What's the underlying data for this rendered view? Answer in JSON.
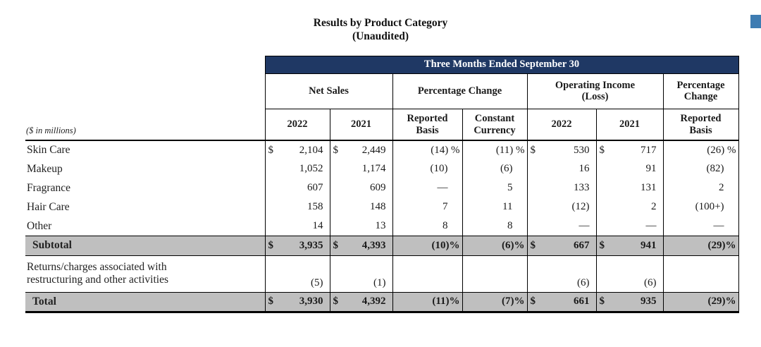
{
  "title": {
    "line1": "Results by Product Category",
    "line2": "(Unaudited)"
  },
  "colors": {
    "navy_header_bg": "#1F3864",
    "header_text": "#FFFFFF",
    "band_bg": "#BFBFBF",
    "border": "#000000",
    "corner_square": "#3E7CB2"
  },
  "table": {
    "span_header": "Three Months Ended September 30",
    "group_headers": [
      "Net Sales",
      "Percentage Change",
      "Operating Income (Loss)",
      "Percentage Change"
    ],
    "units_label": "($ in millions)",
    "col_headers": [
      "2022",
      "2021",
      "Reported Basis",
      "Constant Currency",
      "2022",
      "2021",
      "Reported Basis"
    ],
    "rows": [
      {
        "label": "Skin Care",
        "type": "data",
        "cells": [
          {
            "pre": "$",
            "val": "2,104"
          },
          {
            "pre": "$",
            "val": "2,449"
          },
          {
            "val": "(14) %"
          },
          {
            "val": "(11) %"
          },
          {
            "pre": "$",
            "val": "530"
          },
          {
            "pre": "$",
            "val": "717"
          },
          {
            "val": "(26) %"
          }
        ]
      },
      {
        "label": "Makeup",
        "type": "data",
        "cells": [
          {
            "val": "1,052"
          },
          {
            "val": "1,174"
          },
          {
            "val": "(10)"
          },
          {
            "val": "(6)"
          },
          {
            "val": "16"
          },
          {
            "val": "91"
          },
          {
            "val": "(82)"
          }
        ]
      },
      {
        "label": "Fragrance",
        "type": "data",
        "cells": [
          {
            "val": "607"
          },
          {
            "val": "609"
          },
          {
            "val": "—"
          },
          {
            "val": "5"
          },
          {
            "val": "133"
          },
          {
            "val": "131"
          },
          {
            "val": "2"
          }
        ]
      },
      {
        "label": "Hair Care",
        "type": "data",
        "cells": [
          {
            "val": "158"
          },
          {
            "val": "148"
          },
          {
            "val": "7"
          },
          {
            "val": "11"
          },
          {
            "val": "(12)"
          },
          {
            "val": "2"
          },
          {
            "val": "(100+)"
          }
        ]
      },
      {
        "label": "Other",
        "type": "data",
        "cells": [
          {
            "val": "14"
          },
          {
            "val": "13"
          },
          {
            "val": "8"
          },
          {
            "val": "8"
          },
          {
            "val": "—"
          },
          {
            "val": "—"
          },
          {
            "val": "—"
          }
        ]
      },
      {
        "label": "Subtotal",
        "type": "subtotal",
        "cells": [
          {
            "pre": "$",
            "val": "3,935"
          },
          {
            "pre": "$",
            "val": "4,393"
          },
          {
            "val": "(10)%"
          },
          {
            "val": "(6)%"
          },
          {
            "pre": "$",
            "val": "667"
          },
          {
            "pre": "$",
            "val": "941"
          },
          {
            "val": "(29)%"
          }
        ]
      },
      {
        "label": "Returns/charges associated with restructuring and other activities",
        "type": "returns",
        "cells": [
          {
            "val": "(5)"
          },
          {
            "val": "(1)"
          },
          {
            "val": ""
          },
          {
            "val": ""
          },
          {
            "val": "(6)"
          },
          {
            "val": "(6)"
          },
          {
            "val": ""
          }
        ]
      },
      {
        "label": "Total",
        "type": "total",
        "cells": [
          {
            "pre": "$",
            "val": "3,930"
          },
          {
            "pre": "$",
            "val": "4,392"
          },
          {
            "val": "(11)%"
          },
          {
            "val": "(7)%"
          },
          {
            "pre": "$",
            "val": "661"
          },
          {
            "pre": "$",
            "val": "935"
          },
          {
            "val": "(29)%"
          }
        ]
      }
    ]
  }
}
